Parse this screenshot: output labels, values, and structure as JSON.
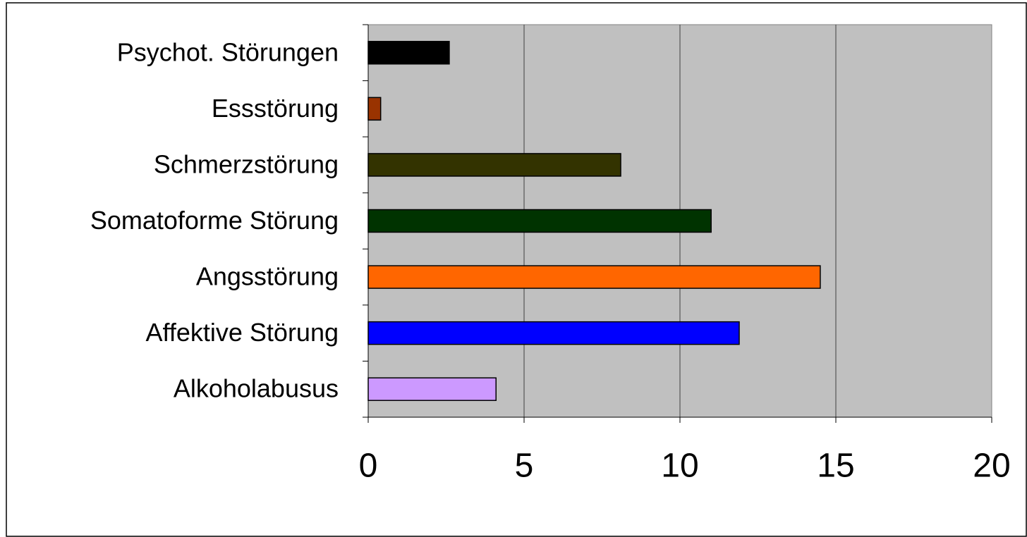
{
  "chart_data": {
    "type": "bar",
    "orientation": "horizontal",
    "categories": [
      "Psychot. Störungen",
      "Essstörung",
      "Schmerzstörung",
      "Somatoforme Störung",
      "Angsstörung",
      "Affektive Störung",
      "Alkoholabusus"
    ],
    "values": [
      2.6,
      0.4,
      8.1,
      11.0,
      14.5,
      11.9,
      4.1
    ],
    "colors": [
      "#000000",
      "#993300",
      "#333300",
      "#003300",
      "#ff6600",
      "#0000ff",
      "#cc99ff"
    ],
    "xlim": [
      0,
      20
    ],
    "xticks": [
      0,
      5,
      10,
      15,
      20
    ],
    "grid": true
  }
}
